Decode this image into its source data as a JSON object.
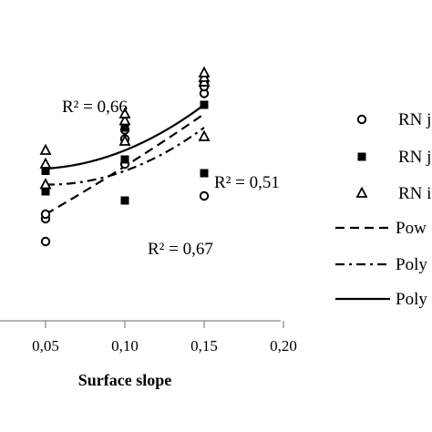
{
  "chart_data": {
    "type": "scatter",
    "xlabel": "Surface slope",
    "ylabel": "",
    "x_ticks": [
      "0,05",
      "0,10",
      "0,15",
      "0,20"
    ],
    "x_tick_values": [
      0.05,
      0.1,
      0.15,
      0.2
    ],
    "xlim": [
      0.0,
      0.2
    ],
    "ylim": [
      0,
      1
    ],
    "grid": false,
    "legend_position": "right",
    "series": [
      {
        "name": "RN j",
        "marker": "circle-open",
        "points": [
          {
            "x": 0.05,
            "y": 0.18
          },
          {
            "x": 0.05,
            "y": 0.28
          },
          {
            "x": 0.05,
            "y": 0.3
          },
          {
            "x": 0.1,
            "y": 0.52
          },
          {
            "x": 0.1,
            "y": 0.63
          },
          {
            "x": 0.1,
            "y": 0.67
          },
          {
            "x": 0.15,
            "y": 0.38
          },
          {
            "x": 0.15,
            "y": 0.83
          },
          {
            "x": 0.15,
            "y": 0.86
          },
          {
            "x": 0.15,
            "y": 0.88
          }
        ]
      },
      {
        "name": "RN j",
        "marker": "square-filled",
        "points": [
          {
            "x": 0.05,
            "y": 0.4
          },
          {
            "x": 0.05,
            "y": 0.49
          },
          {
            "x": 0.1,
            "y": 0.36
          },
          {
            "x": 0.1,
            "y": 0.54
          },
          {
            "x": 0.1,
            "y": 0.68
          },
          {
            "x": 0.15,
            "y": 0.48
          },
          {
            "x": 0.15,
            "y": 0.78
          }
        ]
      },
      {
        "name": "RN j",
        "marker": "triangle-open",
        "points": [
          {
            "x": 0.05,
            "y": 0.43
          },
          {
            "x": 0.05,
            "y": 0.52
          },
          {
            "x": 0.05,
            "y": 0.58
          },
          {
            "x": 0.1,
            "y": 0.62
          },
          {
            "x": 0.1,
            "y": 0.71
          },
          {
            "x": 0.1,
            "y": 0.74
          },
          {
            "x": 0.15,
            "y": 0.64
          },
          {
            "x": 0.15,
            "y": 0.88
          },
          {
            "x": 0.15,
            "y": 0.9
          },
          {
            "x": 0.15,
            "y": 0.92
          }
        ]
      }
    ],
    "trendlines": [
      {
        "name": "Pow",
        "style": "dashed",
        "points": [
          {
            "x": 0.05,
            "y": 0.3
          },
          {
            "x": 0.1,
            "y": 0.51
          },
          {
            "x": 0.15,
            "y": 0.74
          }
        ]
      },
      {
        "name": "Poly",
        "style": "dash-dot",
        "points": [
          {
            "x": 0.05,
            "y": 0.43
          },
          {
            "x": 0.1,
            "y": 0.49
          },
          {
            "x": 0.15,
            "y": 0.68
          }
        ]
      },
      {
        "name": "Poly",
        "style": "solid",
        "points": [
          {
            "x": 0.05,
            "y": 0.5
          },
          {
            "x": 0.1,
            "y": 0.58
          },
          {
            "x": 0.15,
            "y": 0.78
          }
        ]
      }
    ],
    "annotations": [
      "R² = 0,66",
      "R² = 0,51",
      "R² = 0,67"
    ],
    "legend": [
      "RN j",
      "RN j",
      "RN i",
      "Pow",
      "Poly",
      "Poly"
    ]
  }
}
